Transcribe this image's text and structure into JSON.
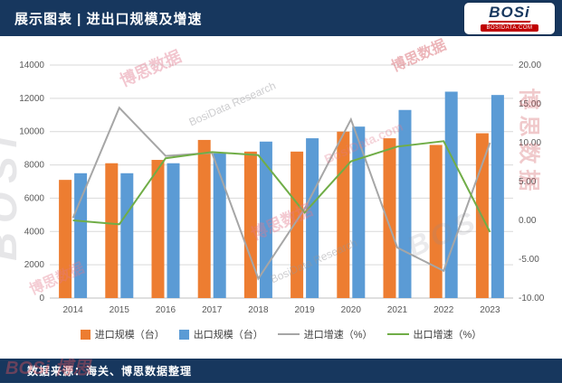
{
  "header": {
    "title": "展示图表 | 进出口规模及增速",
    "logo": {
      "brand": "BOSi",
      "domain": "BOSIDATA.COM"
    }
  },
  "footer": {
    "source": "数据来源：海关、博思数据整理"
  },
  "watermarks": {
    "brand": "BOSi",
    "brand_cn": "博思数据",
    "research": "BosiData Research",
    "brand_mix": "BOSi 博思",
    "site": "BosiData.com"
  },
  "colors": {
    "navy": "#17375E",
    "orange": "#ED7D31",
    "blue": "#5B9BD5",
    "gray_line": "#A6A6A6",
    "green_line": "#70AD47",
    "logo_red": "#C00000",
    "gridline": "#D9D9D9"
  },
  "chart_data": {
    "type": "bar",
    "subtype": "combo-bar-line-dual-axis",
    "title": "进出口规模及增速",
    "categories": [
      "2014",
      "2015",
      "2016",
      "2017",
      "2018",
      "2019",
      "2020",
      "2021",
      "2022",
      "2023"
    ],
    "series": [
      {
        "name": "进口规模（台）",
        "type": "bar",
        "axis": "left",
        "color": "#ED7D31",
        "values": [
          7100,
          8100,
          8300,
          9500,
          8800,
          8800,
          10000,
          9600,
          9200,
          9900
        ]
      },
      {
        "name": "出口规模（台）",
        "type": "bar",
        "axis": "left",
        "color": "#5B9BD5",
        "values": [
          7500,
          7500,
          8100,
          8700,
          9400,
          9600,
          10300,
          11300,
          12400,
          12200
        ]
      },
      {
        "name": "进口增速（%）",
        "type": "line",
        "axis": "right",
        "color": "#A6A6A6",
        "values": [
          0.3,
          14.5,
          8.3,
          8.7,
          -7.5,
          1.5,
          13.0,
          -3.5,
          -6.5,
          10.0
        ]
      },
      {
        "name": "出口增速（%）",
        "type": "line",
        "axis": "right",
        "color": "#70AD47",
        "values": [
          0.0,
          -0.5,
          8.0,
          8.8,
          8.4,
          1.0,
          7.6,
          9.5,
          10.2,
          -1.5
        ]
      }
    ],
    "left_axis": {
      "min": 0,
      "max": 14000,
      "tick_labels": [
        "0",
        "2000",
        "4000",
        "6000",
        "8000",
        "10000",
        "12000",
        "14000"
      ],
      "tick_values": [
        0,
        2000,
        4000,
        6000,
        8000,
        10000,
        12000,
        14000
      ]
    },
    "right_axis": {
      "min": -10,
      "max": 20,
      "tick_labels": [
        "-10.00",
        "-5.00",
        "0.00",
        "5.00",
        "10.00",
        "15.00",
        "20.00"
      ],
      "tick_values": [
        -10,
        -5,
        0,
        5,
        10,
        15,
        20
      ]
    },
    "grid": true,
    "legend_position": "bottom"
  }
}
